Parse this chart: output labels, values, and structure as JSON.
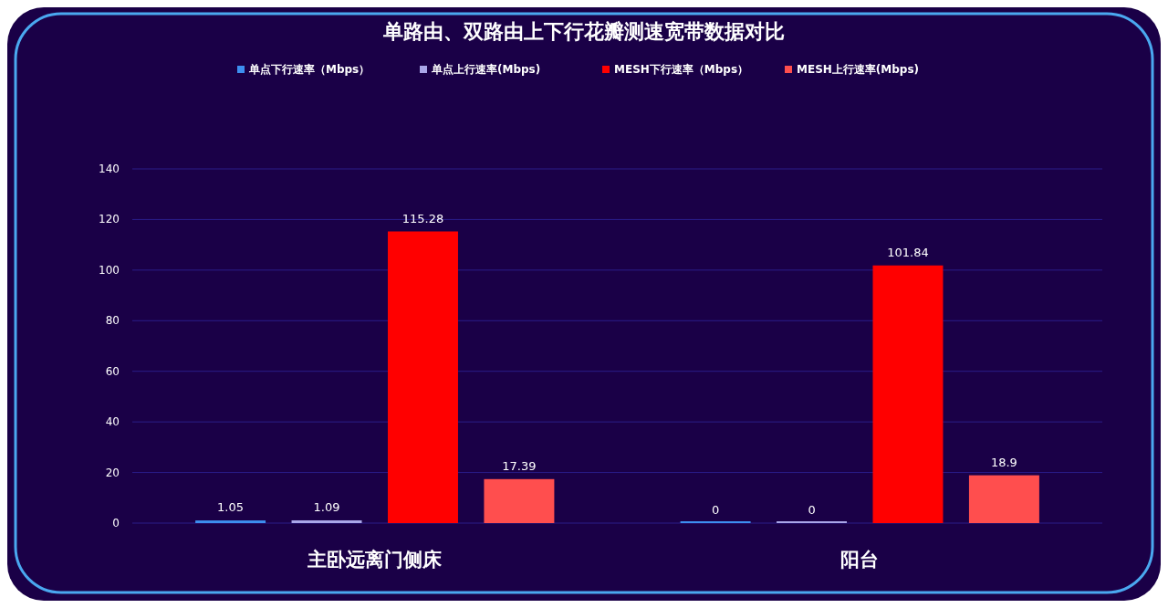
{
  "chart_data": {
    "type": "bar",
    "title": "单路由、双路由上下行花瓣测速宽带数据对比",
    "categories": [
      "主卧远离门侧床",
      "阳台"
    ],
    "series": [
      {
        "name": "单点下行速率（Mbps）",
        "color": "#3d8ff0",
        "values": [
          1.05,
          0
        ]
      },
      {
        "name": "单点上行速率(Mbps)",
        "color": "#a9a6e8",
        "values": [
          1.09,
          0
        ]
      },
      {
        "name": "MESH下行速率（Mbps）",
        "color": "#ff0000",
        "values": [
          115.28,
          101.84
        ]
      },
      {
        "name": "MESH上行速率(Mbps)",
        "color": "#ff4e4e",
        "values": [
          17.39,
          18.9
        ]
      }
    ],
    "ylim": [
      0,
      140
    ],
    "yticks": [
      0,
      20,
      40,
      60,
      80,
      100,
      120,
      140
    ],
    "grid": "y",
    "legend": "top",
    "data_labels": true
  }
}
